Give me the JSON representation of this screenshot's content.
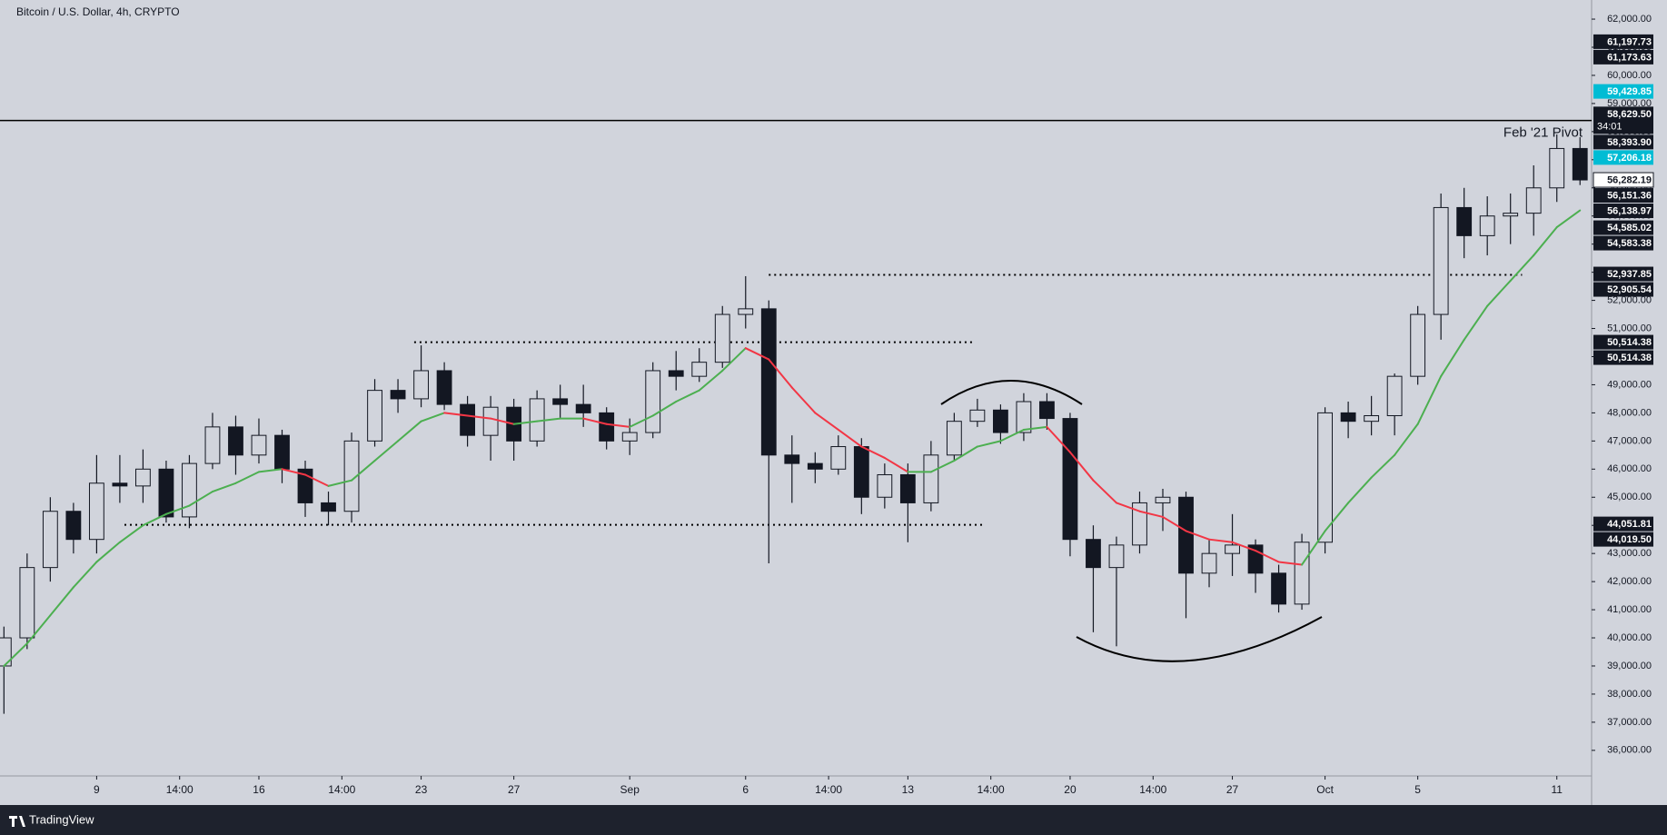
{
  "chart_data": {
    "type": "candlestick",
    "title": "Bitcoin / U.S. Dollar, 4h, CRYPTO",
    "footer": "TradingView",
    "x": [
      5,
      6,
      7,
      8,
      9,
      10,
      11,
      12,
      13,
      14,
      15,
      16,
      17,
      18,
      19,
      20,
      21,
      22,
      23,
      24,
      25,
      26,
      27,
      28,
      29,
      30,
      31,
      32,
      33,
      34,
      35,
      36,
      37,
      38,
      39,
      40,
      41,
      42,
      43,
      44,
      45,
      46,
      47,
      48,
      49,
      50,
      51,
      52,
      53,
      54,
      55,
      56,
      57,
      58,
      59,
      60,
      61,
      62,
      63,
      64,
      65,
      66,
      67,
      68,
      69,
      70,
      71,
      72,
      73
    ],
    "open": [
      39000,
      40000,
      42500,
      44500,
      43500,
      45500,
      45400,
      46000,
      44300,
      46200,
      47500,
      46500,
      47200,
      46000,
      44800,
      44500,
      47000,
      48800,
      48500,
      49500,
      48300,
      47200,
      48200,
      47000,
      48500,
      48300,
      48000,
      47000,
      47300,
      49500,
      49300,
      49800,
      51500,
      51700,
      46500,
      46200,
      46000,
      46800,
      45000,
      45800,
      44800,
      46500,
      47700,
      48100,
      47300,
      48400,
      47800,
      43500,
      42500,
      43300,
      44800,
      45000,
      42300,
      43000,
      43300,
      42300,
      41200,
      43400,
      48000,
      47700,
      47900,
      49300,
      51500,
      55300,
      54300,
      55000,
      55100,
      56000,
      57400
    ],
    "high": [
      40400,
      43000,
      45000,
      44800,
      46500,
      46500,
      46700,
      46300,
      46500,
      48000,
      47900,
      47800,
      47400,
      46300,
      45200,
      47300,
      49200,
      49200,
      50400,
      49800,
      48600,
      48600,
      48500,
      48800,
      49000,
      49000,
      48200,
      47800,
      49800,
      50200,
      50300,
      51800,
      52860,
      52000,
      47200,
      46600,
      47200,
      47100,
      46200,
      46200,
      47000,
      48000,
      48500,
      48300,
      48700,
      48700,
      48000,
      44000,
      43600,
      45200,
      45300,
      45200,
      43500,
      44400,
      43500,
      42600,
      43700,
      48200,
      48400,
      48600,
      49400,
      51800,
      55800,
      56000,
      55700,
      55800,
      56800,
      57900,
      57800
    ],
    "low": [
      37300,
      39600,
      42000,
      43000,
      43000,
      44800,
      44800,
      44100,
      43900,
      46000,
      45800,
      46200,
      45500,
      44300,
      44000,
      44100,
      46800,
      48000,
      48200,
      48100,
      46800,
      46300,
      46300,
      46800,
      47800,
      47500,
      46700,
      46500,
      47100,
      48800,
      49100,
      49600,
      51000,
      42650,
      44800,
      45500,
      45800,
      44400,
      44600,
      43400,
      44500,
      46300,
      47500,
      46900,
      47000,
      47400,
      42900,
      40200,
      39700,
      43000,
      43800,
      40700,
      41800,
      42200,
      41600,
      40900,
      41000,
      43000,
      47100,
      47200,
      47200,
      49000,
      50600,
      53500,
      53600,
      54000,
      54300,
      55500,
      56100
    ],
    "close": [
      40000,
      42500,
      44500,
      43500,
      45500,
      45400,
      46000,
      44300,
      46200,
      47500,
      46500,
      47200,
      46000,
      44800,
      44500,
      47000,
      48800,
      48500,
      49500,
      48300,
      47200,
      48200,
      47000,
      48500,
      48300,
      48000,
      47000,
      47300,
      49500,
      49300,
      49800,
      51500,
      51700,
      46500,
      46200,
      46000,
      46800,
      45000,
      45800,
      44800,
      46500,
      47700,
      48100,
      47300,
      48400,
      47800,
      43500,
      42500,
      43300,
      44800,
      45000,
      42300,
      43000,
      43300,
      42300,
      41200,
      43400,
      48000,
      47700,
      47900,
      49300,
      51500,
      55300,
      54300,
      55000,
      55100,
      56000,
      57400,
      56282.19
    ],
    "up_color": "#d1d4dc",
    "down_color": "#131722",
    "wick_color": "#131722",
    "ma": {
      "values": [
        39000,
        39800,
        40800,
        41800,
        42700,
        43400,
        44000,
        44400,
        44700,
        45200,
        45500,
        45900,
        46000,
        45800,
        45400,
        45600,
        46300,
        47000,
        47700,
        48000,
        47900,
        47800,
        47600,
        47700,
        47800,
        47800,
        47600,
        47500,
        47900,
        48400,
        48800,
        49500,
        50300,
        49900,
        48900,
        48000,
        47400,
        46800,
        46400,
        45900,
        45900,
        46300,
        46800,
        47000,
        47400,
        47500,
        46600,
        45600,
        44800,
        44500,
        44300,
        43800,
        43500,
        43400,
        43100,
        42700,
        42600,
        43800,
        44800,
        45700,
        46500,
        47600,
        49300,
        50600,
        51800,
        52700,
        53600,
        54600,
        55200
      ],
      "up_color": "#4caf50",
      "down_color": "#f23645"
    },
    "xlim": [
      4.83,
      73.5
    ],
    "xticks": [
      {
        "value": 9,
        "label": "9"
      },
      {
        "value": 12.58,
        "label": "14:00"
      },
      {
        "value": 16,
        "label": "16"
      },
      {
        "value": 19.58,
        "label": "14:00"
      },
      {
        "value": 23,
        "label": "23"
      },
      {
        "value": 27,
        "label": "27"
      },
      {
        "value": 32,
        "label": "Sep"
      },
      {
        "value": 37,
        "label": "6"
      },
      {
        "value": 40.58,
        "label": "14:00"
      },
      {
        "value": 44,
        "label": "13"
      },
      {
        "value": 47.58,
        "label": "14:00"
      },
      {
        "value": 51,
        "label": "20"
      },
      {
        "value": 54.58,
        "label": "14:00"
      },
      {
        "value": 58,
        "label": "27"
      },
      {
        "value": 62,
        "label": "Oct"
      },
      {
        "value": 66,
        "label": "5"
      },
      {
        "value": 72,
        "label": "11"
      }
    ],
    "ylim": [
      35090,
      62680
    ],
    "yticks": [
      {
        "value": 36000,
        "label": "36,000.00"
      },
      {
        "value": 37000,
        "label": "37,000.00"
      },
      {
        "value": 38000,
        "label": "38,000.00"
      },
      {
        "value": 39000,
        "label": "39,000.00"
      },
      {
        "value": 40000,
        "label": "40,000.00"
      },
      {
        "value": 41000,
        "label": "41,000.00"
      },
      {
        "value": 42000,
        "label": "42,000.00"
      },
      {
        "value": 43000,
        "label": "43,000.00"
      },
      {
        "value": 44000,
        "label": "44,000.00"
      },
      {
        "value": 45000,
        "label": "45,000.00"
      },
      {
        "value": 46000,
        "label": "46,000.00"
      },
      {
        "value": 47000,
        "label": "47,000.00"
      },
      {
        "value": 48000,
        "label": "48,000.00"
      },
      {
        "value": 49000,
        "label": "49,000.00"
      },
      {
        "value": 50000,
        "label": "50,000.00"
      },
      {
        "value": 51000,
        "label": "51,000.00"
      },
      {
        "value": 52000,
        "label": "52,000.00"
      },
      {
        "value": 53000,
        "label": "53,000.00"
      },
      {
        "value": 54000,
        "label": "54,000.00"
      },
      {
        "value": 55000,
        "label": "55,000.00"
      },
      {
        "value": 56000,
        "label": "56,000.00"
      },
      {
        "value": 57000,
        "label": "57,000.00"
      },
      {
        "value": 58000,
        "label": "58,000.00"
      },
      {
        "value": 59000,
        "label": "59,000.00"
      },
      {
        "value": 60000,
        "label": "60,000.00"
      },
      {
        "value": 61000,
        "label": "61,000.00"
      },
      {
        "value": 62000,
        "label": "62,000.00"
      }
    ],
    "levels": [
      {
        "value": 58393.9,
        "label": "Feb '21 Pivot",
        "style": "solid"
      },
      {
        "value": 52905.54,
        "x": [
          38.0,
          70.5
        ],
        "style": "dotted"
      },
      {
        "value": 50514.38,
        "x": [
          22.7,
          46.9
        ],
        "style": "dotted"
      },
      {
        "value": 44019.5,
        "x": [
          10.2,
          47.2
        ],
        "style": "dotted"
      }
    ],
    "price_labels": [
      {
        "value": 61197.73,
        "label": "61,197.73",
        "color": "#131722"
      },
      {
        "value": 61173.63,
        "label": "61,173.63",
        "color": "#131722"
      },
      {
        "value": 59429.85,
        "label": "59,429.85",
        "color": "#00bcd4"
      },
      {
        "value": 58629.5,
        "label": "58,629.50",
        "color": "#131722",
        "countdown": "34:01"
      },
      {
        "value": 58393.9,
        "label": "58,393.90",
        "color": "#131722"
      },
      {
        "value": 57206.18,
        "label": "57,206.18",
        "color": "#00bcd4"
      },
      {
        "value": 56282.19,
        "label": "56,282.19",
        "color": "#ffffff"
      },
      {
        "value": 56151.36,
        "label": "56,151.36",
        "color": "#131722"
      },
      {
        "value": 56138.97,
        "label": "56,138.97",
        "color": "#131722"
      },
      {
        "value": 54585.02,
        "label": "54,585.02",
        "color": "#131722"
      },
      {
        "value": 54583.38,
        "label": "54,583.38",
        "color": "#131722"
      },
      {
        "value": 52937.85,
        "label": "52,937.85",
        "color": "#131722"
      },
      {
        "value": 52905.54,
        "label": "52,905.54",
        "color": "#131722"
      },
      {
        "value": 50514.38,
        "label": "50,514.38",
        "color": "#131722"
      },
      {
        "value": 50514.38,
        "label": "50,514.38",
        "color": "#131722"
      },
      {
        "value": 44051.81,
        "label": "44,051.81",
        "color": "#131722"
      },
      {
        "value": 44019.5,
        "label": "44,019.50",
        "color": "#131722"
      }
    ]
  }
}
